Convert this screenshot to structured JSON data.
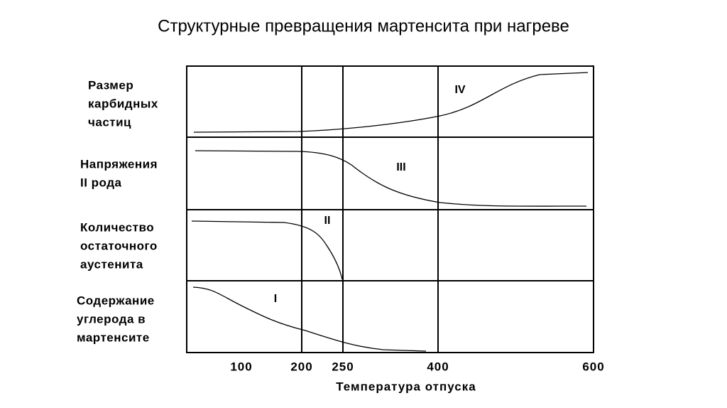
{
  "title": "Структурные превращения мартенсита при нагреве",
  "rows": [
    {
      "label": [
        "Размер",
        "карбидных",
        "частиц"
      ],
      "stage": "IV"
    },
    {
      "label": [
        "Напряжения",
        "II рода"
      ],
      "stage": "III"
    },
    {
      "label": [
        "Количество",
        "остаточного",
        "аустенита"
      ],
      "stage": "II"
    },
    {
      "label": [
        "Содержание",
        "углерода в",
        "мартенсите"
      ],
      "stage": "I"
    }
  ],
  "x_axis": {
    "title": "Температура отпуска",
    "ticks": [
      "100",
      "200",
      "250",
      "400",
      "600"
    ]
  }
}
